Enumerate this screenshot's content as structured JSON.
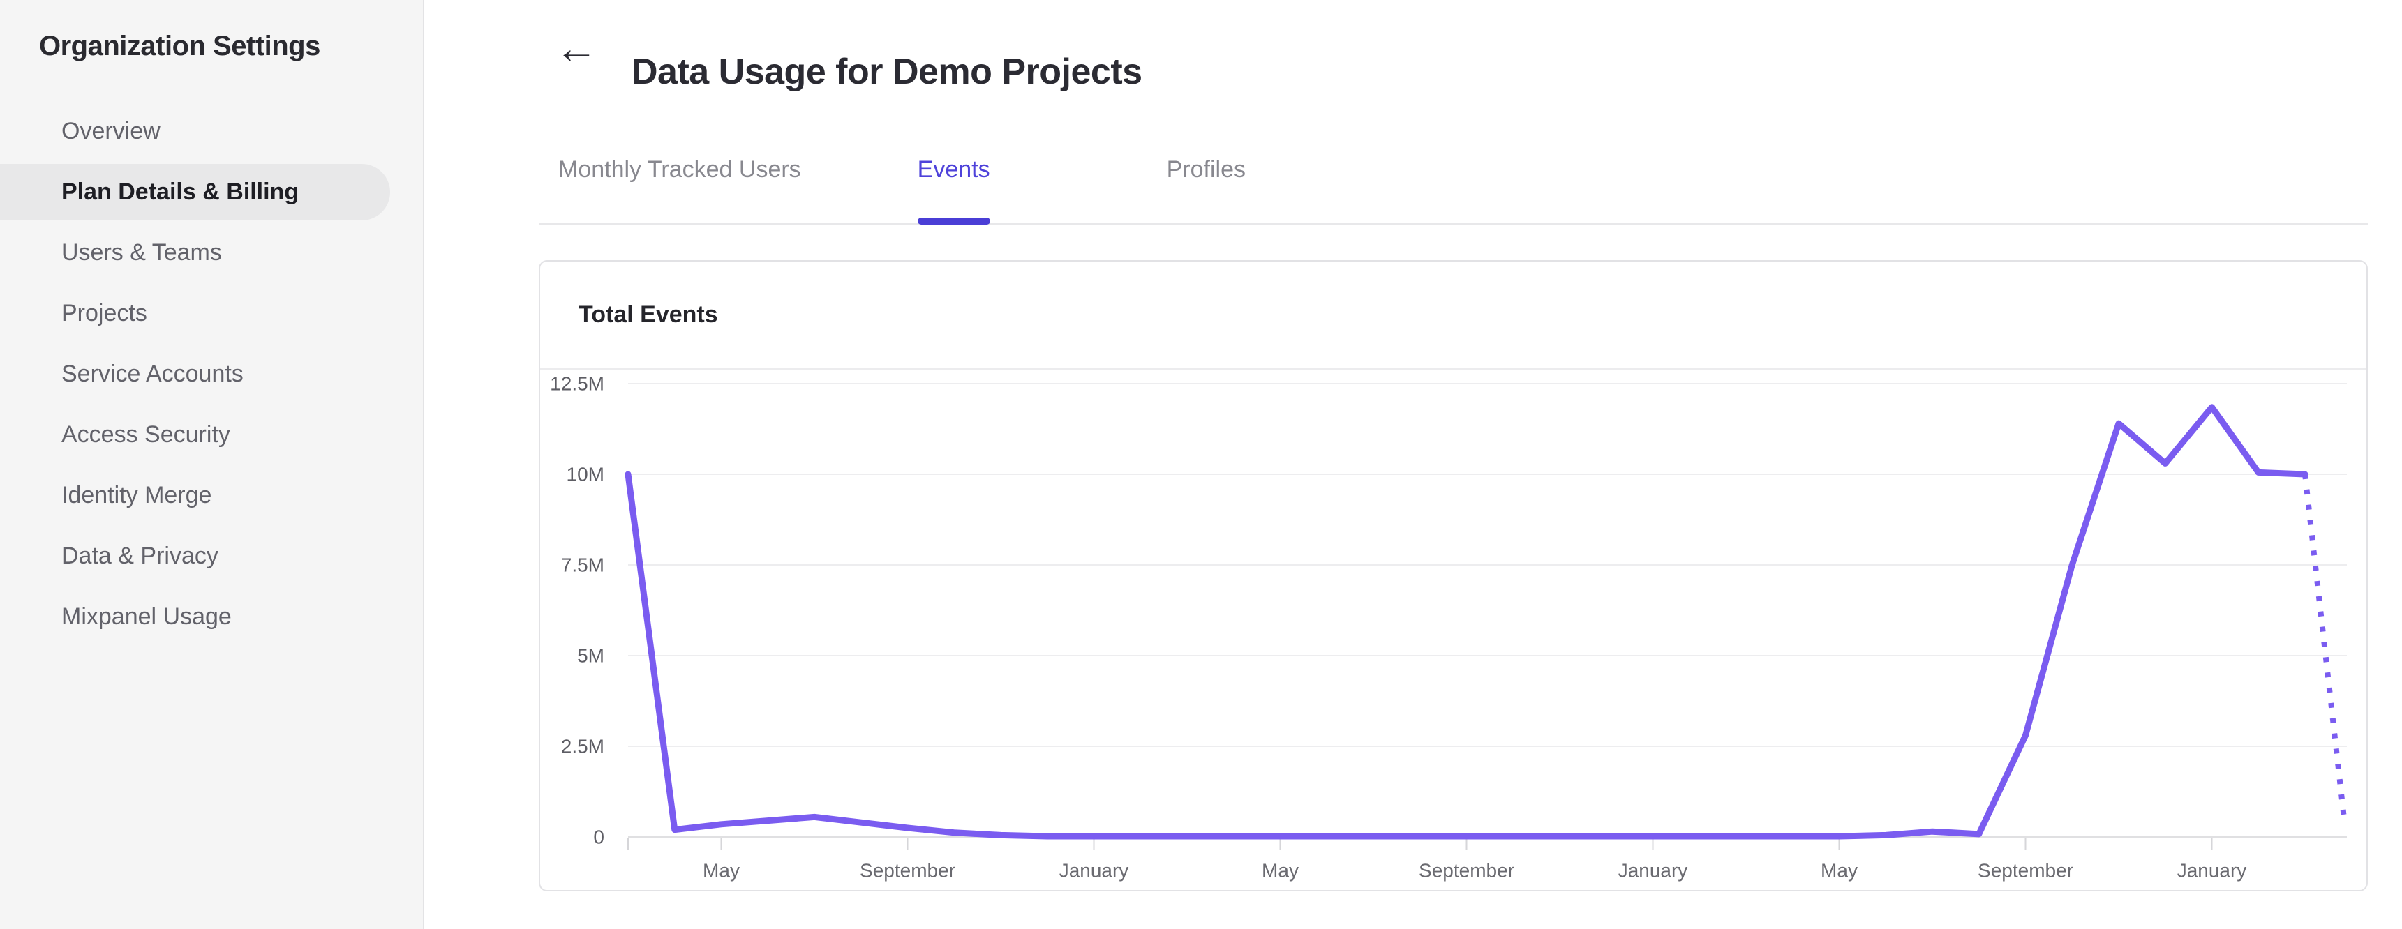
{
  "sidebar": {
    "title": "Organization Settings",
    "items": [
      {
        "label": "Overview",
        "selected": false
      },
      {
        "label": "Plan Details & Billing",
        "selected": true
      },
      {
        "label": "Users & Teams",
        "selected": false
      },
      {
        "label": "Projects",
        "selected": false
      },
      {
        "label": "Service Accounts",
        "selected": false
      },
      {
        "label": "Access Security",
        "selected": false
      },
      {
        "label": "Identity Merge",
        "selected": false
      },
      {
        "label": "Data & Privacy",
        "selected": false
      },
      {
        "label": "Mixpanel Usage",
        "selected": false
      }
    ]
  },
  "header": {
    "back_icon": "←",
    "title": "Data Usage for Demo Projects"
  },
  "tabs": {
    "items": [
      {
        "label": "Monthly Tracked Users",
        "active": false
      },
      {
        "label": "Events",
        "active": true
      },
      {
        "label": "Profiles",
        "active": false
      }
    ]
  },
  "card": {
    "title": "Total Events"
  },
  "colors": {
    "accent_purple": "#4E42DA",
    "tab_underline": "#4A3ED6",
    "line_purple": "#7A5CF0",
    "selected_pill": "#E8E8E9",
    "sidebar_bg": "#F5F5F5",
    "gridline": "#EDEDEF"
  },
  "chart_data": {
    "type": "line",
    "title": "Total Events",
    "series_name": "Total Events",
    "x_unit": "month",
    "months": [
      "March",
      "April",
      "May",
      "June",
      "July",
      "August",
      "September",
      "October",
      "November",
      "December",
      "January",
      "February",
      "March",
      "April",
      "May",
      "June",
      "July",
      "August",
      "September",
      "October",
      "November",
      "December",
      "January",
      "February",
      "March",
      "April",
      "May",
      "June",
      "July",
      "August",
      "September",
      "October",
      "November",
      "December",
      "January",
      "February",
      "March"
    ],
    "values_millions": [
      10.0,
      0.2,
      0.35,
      0.45,
      0.55,
      0.4,
      0.25,
      0.12,
      0.05,
      0.02,
      0.02,
      0.02,
      0.02,
      0.02,
      0.02,
      0.02,
      0.02,
      0.02,
      0.02,
      0.02,
      0.02,
      0.02,
      0.02,
      0.02,
      0.02,
      0.02,
      0.02,
      0.05,
      0.15,
      0.08,
      2.8,
      7.5,
      11.4,
      10.3,
      11.85,
      10.05,
      10.0
    ],
    "projection": {
      "month": "April",
      "value_millions": 0.35,
      "style": "dotted"
    },
    "y_tick_labels": [
      "0",
      "2.5M",
      "5M",
      "7.5M",
      "10M",
      "12.5M"
    ],
    "y_tick_values": [
      0,
      2.5,
      5,
      7.5,
      10,
      12.5
    ],
    "x_tick_labels": [
      "May",
      "September",
      "January",
      "May",
      "September",
      "January",
      "May",
      "September",
      "January"
    ],
    "x_tick_indices": [
      2,
      6,
      10,
      14,
      18,
      22,
      26,
      30,
      34
    ],
    "ylim": [
      0,
      12.5
    ],
    "grid": true,
    "legend": false,
    "line_color": "#7A5CF0"
  }
}
